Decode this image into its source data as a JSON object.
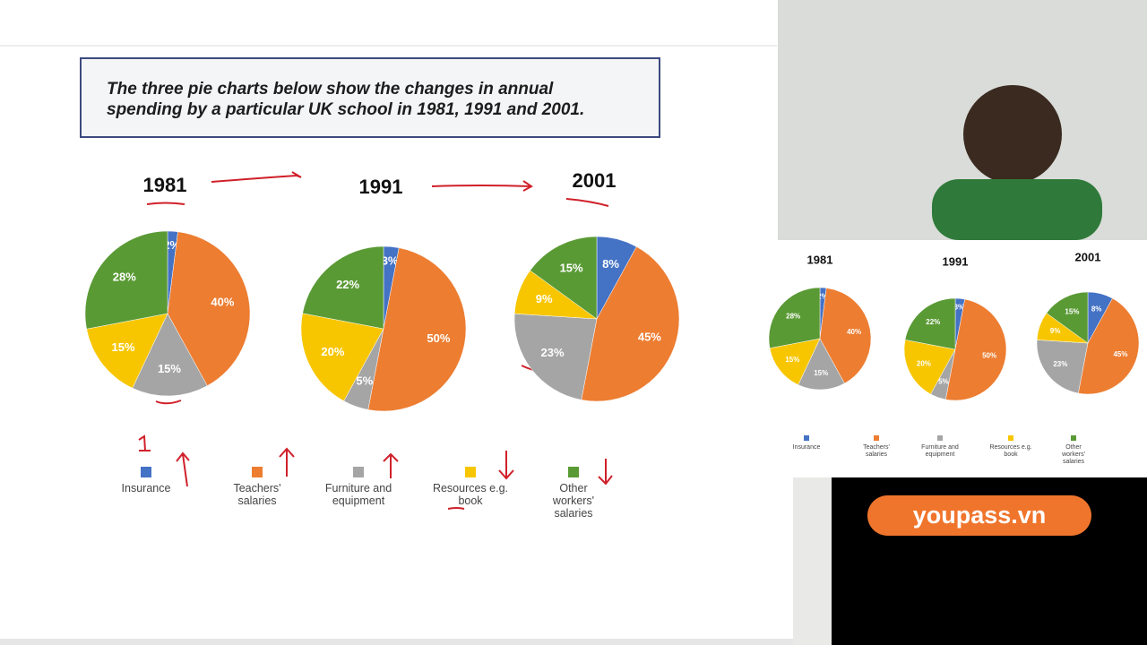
{
  "prompt": {
    "text": "The three pie charts below show the changes in annual spending by a particular UK school in 1981, 1991 and 2001."
  },
  "brand": "youpass.vn",
  "chart_data": [
    {
      "type": "pie",
      "title": "1981",
      "categories": [
        "Insurance",
        "Teachers' salaries",
        "Furniture and equipment",
        "Resources e.g. book",
        "Other workers' salaries"
      ],
      "values": [
        2,
        40,
        15,
        15,
        28
      ],
      "value_labels": [
        "2%",
        "40%",
        "15%",
        "15%",
        "28%"
      ],
      "colors": [
        "#4472c4",
        "#ed7d31",
        "#a5a5a5",
        "#f7c600",
        "#5a9a35"
      ]
    },
    {
      "type": "pie",
      "title": "1991",
      "categories": [
        "Insurance",
        "Teachers' salaries",
        "Furniture and equipment",
        "Resources e.g. book",
        "Other workers' salaries"
      ],
      "values": [
        3,
        50,
        5,
        20,
        22
      ],
      "value_labels": [
        "3%",
        "50%",
        "5%",
        "20%",
        "22%"
      ],
      "colors": [
        "#4472c4",
        "#ed7d31",
        "#a5a5a5",
        "#f7c600",
        "#5a9a35"
      ]
    },
    {
      "type": "pie",
      "title": "2001",
      "categories": [
        "Insurance",
        "Teachers' salaries",
        "Furniture and equipment",
        "Resources e.g. book",
        "Other workers' salaries"
      ],
      "values": [
        8,
        45,
        23,
        9,
        15
      ],
      "value_labels": [
        "8%",
        "45%",
        "23%",
        "9%",
        "15%"
      ],
      "colors": [
        "#4472c4",
        "#ed7d31",
        "#a5a5a5",
        "#f7c600",
        "#5a9a35"
      ]
    }
  ]
}
